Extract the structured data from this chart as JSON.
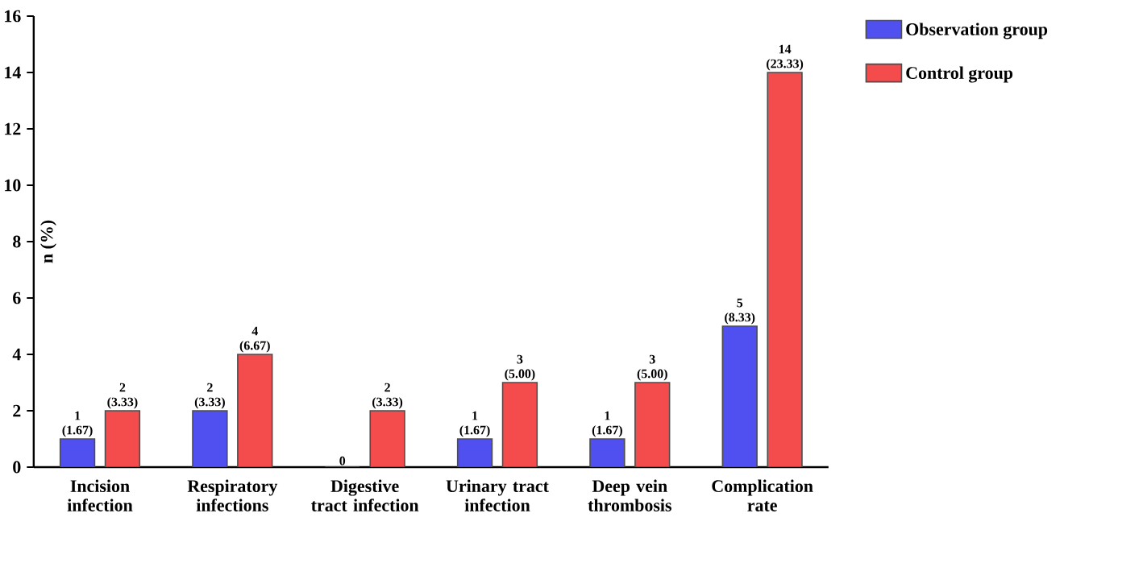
{
  "chart_data": {
    "type": "bar",
    "ylabel": "n (%)",
    "categories": [
      "Incision infection",
      "Respiratory infections",
      "Digestive tract infection",
      "Urinary tract infection",
      "Deep vein thrombosis",
      "Complication rate"
    ],
    "series": [
      {
        "name": "Observation group",
        "color": "#5050f0",
        "values": [
          1,
          2,
          0,
          1,
          1,
          5
        ],
        "value_labels": [
          "1 (1.67)",
          "2 (3.33)",
          "0",
          "1 (1.67)",
          "1 (1.67)",
          "5 (8.33)"
        ]
      },
      {
        "name": "Control group",
        "color": "#f44c4c",
        "values": [
          2,
          4,
          2,
          3,
          3,
          14
        ],
        "value_labels": [
          "2 (3.33)",
          "4 (6.67)",
          "2 (3.33)",
          "3 (5.00)",
          "3 (5.00)",
          "14 (23.33)"
        ]
      }
    ],
    "ylim": [
      0,
      16
    ],
    "yticks": [
      0,
      2,
      4,
      6,
      8,
      10,
      12,
      14,
      16
    ],
    "grid": false,
    "legend": "right"
  }
}
